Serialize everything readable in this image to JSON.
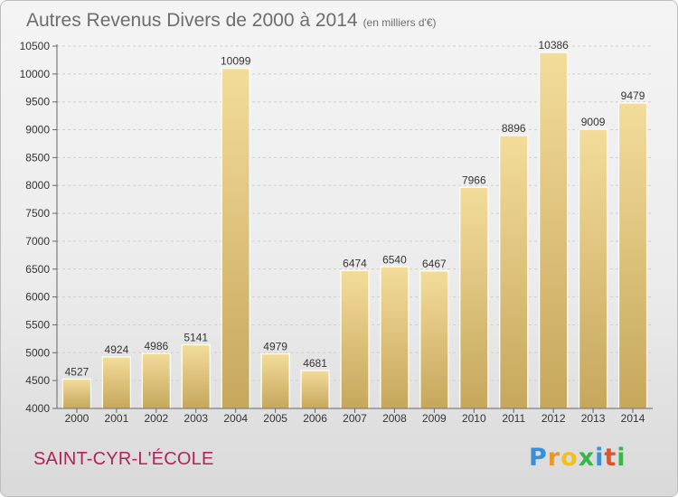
{
  "header": {
    "title": "Autres Revenus Divers de 2000 à 2014",
    "unit": "(en milliers d'€)"
  },
  "footer": {
    "commune": "SAINT-CYR-L'ÉCOLE",
    "brand_letters": [
      "P",
      "r",
      "o",
      "x",
      "i",
      "t",
      "i"
    ],
    "brand_colors": [
      "#3a8fd6",
      "#e8962e",
      "#f0c020",
      "#3ab54a",
      "#3a8fd6",
      "#e2502e",
      "#3ab54a"
    ]
  },
  "chart_data": {
    "type": "bar",
    "title": "Autres Revenus Divers de 2000 à 2014",
    "xlabel": "",
    "ylabel": "",
    "categories": [
      "2000",
      "2001",
      "2002",
      "2003",
      "2004",
      "2005",
      "2006",
      "2007",
      "2008",
      "2009",
      "2010",
      "2011",
      "2012",
      "2013",
      "2014"
    ],
    "values": [
      4527,
      4924,
      4986,
      5141,
      10099,
      4979,
      4681,
      6474,
      6540,
      6467,
      7966,
      8896,
      10386,
      9009,
      9479
    ],
    "ylim": [
      4000,
      10500
    ],
    "yticks": [
      4000,
      4500,
      5000,
      5500,
      6000,
      6500,
      7000,
      7500,
      8000,
      8500,
      9000,
      9500,
      10000,
      10500
    ],
    "grid": true,
    "bar_color": "#e6c97e"
  }
}
